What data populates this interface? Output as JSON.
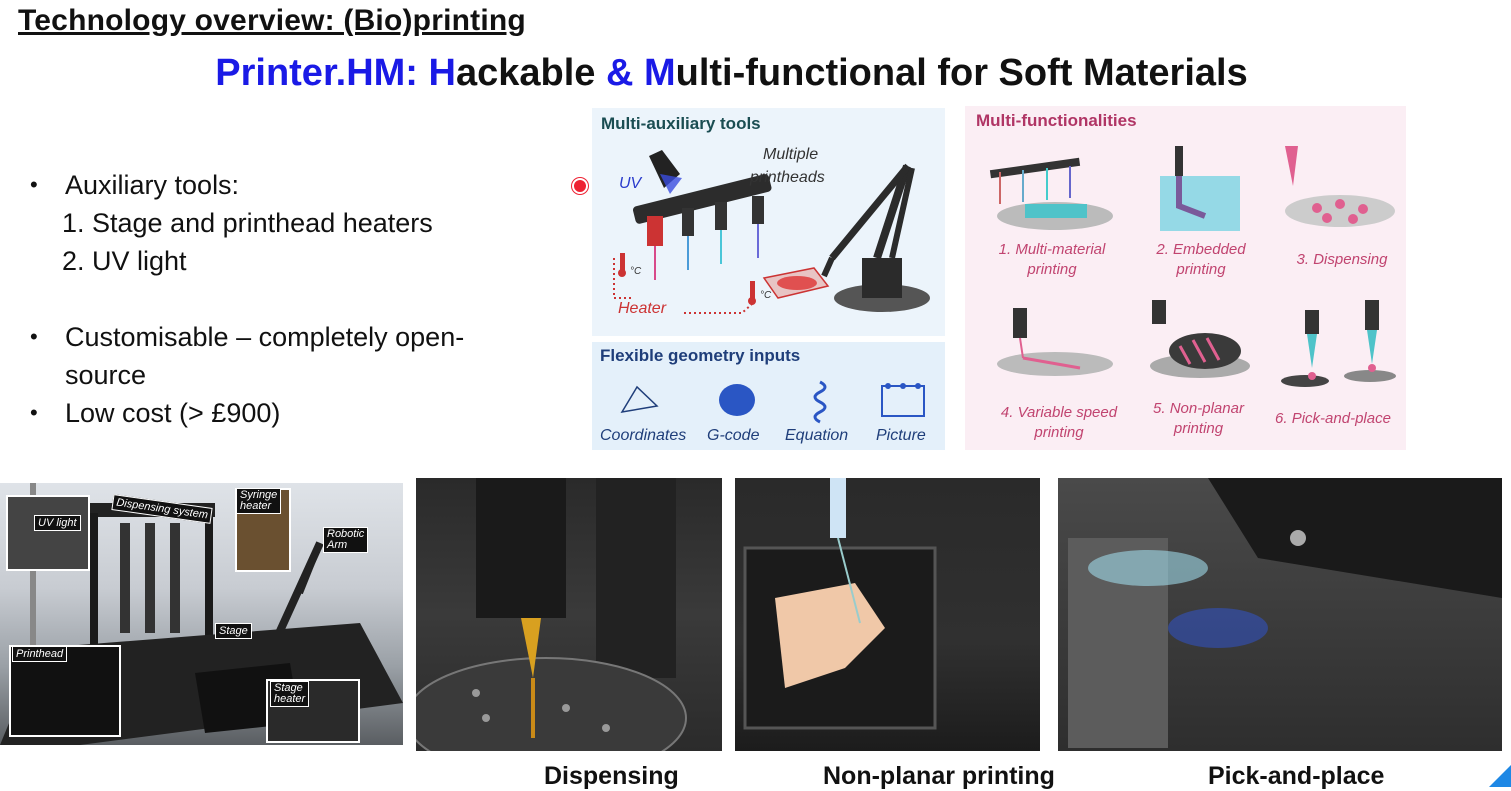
{
  "slide": {
    "heading": "Technology overview: (Bio)printing",
    "title": {
      "part1": "Printer.HM: H",
      "part2": "ackable ",
      "part3": "& M",
      "part4": "ulti-functional for Soft Materials"
    }
  },
  "bullets": {
    "b1": "Auxiliary tools:",
    "b1_sub1": "1. Stage and printhead heaters",
    "b1_sub2": "2. UV light",
    "b2_line1": "Customisable – completely open-",
    "b2_line2": "source",
    "b3": "Low cost (> £900)"
  },
  "figure": {
    "aux": {
      "title": "Multi-auxiliary tools",
      "uv": "UV",
      "multiple": "Multiple",
      "printheads": "printheads",
      "heater": "Heater",
      "deg1": "°C",
      "deg2": "°C"
    },
    "geo": {
      "title": "Flexible geometry inputs",
      "labels": [
        "Coordinates",
        "G-code",
        "Equation",
        "Picture"
      ]
    },
    "func": {
      "title": "Multi-functionalities",
      "f1a": "1. Multi-material",
      "f1b": "printing",
      "f2a": "2. Embedded",
      "f2b": "printing",
      "f3": "3. Dispensing",
      "f4a": "4. Variable speed",
      "f4b": "printing",
      "f5a": "5. Non-planar",
      "f5b": "printing",
      "f6": "6. Pick-and-place"
    }
  },
  "photos": {
    "setup_labels": {
      "uv_light": "UV light",
      "dispensing_system": "Dispensing system",
      "syringe_heater_1": "Syringe",
      "syringe_heater_2": "heater",
      "robotic_arm_1": "Robotic",
      "robotic_arm_2": "Arm",
      "stage": "Stage",
      "printhead": "Printhead",
      "stage_heater_1": "Stage",
      "stage_heater_2": "heater"
    },
    "captions": {
      "dispensing": "Dispensing",
      "non_planar": "Non-planar printing",
      "pick_place": "Pick-and-place"
    }
  },
  "colors": {
    "title_blue": "#1a1ae6",
    "accent_pink": "#c14470",
    "accent_navy": "#1f3e7a"
  }
}
